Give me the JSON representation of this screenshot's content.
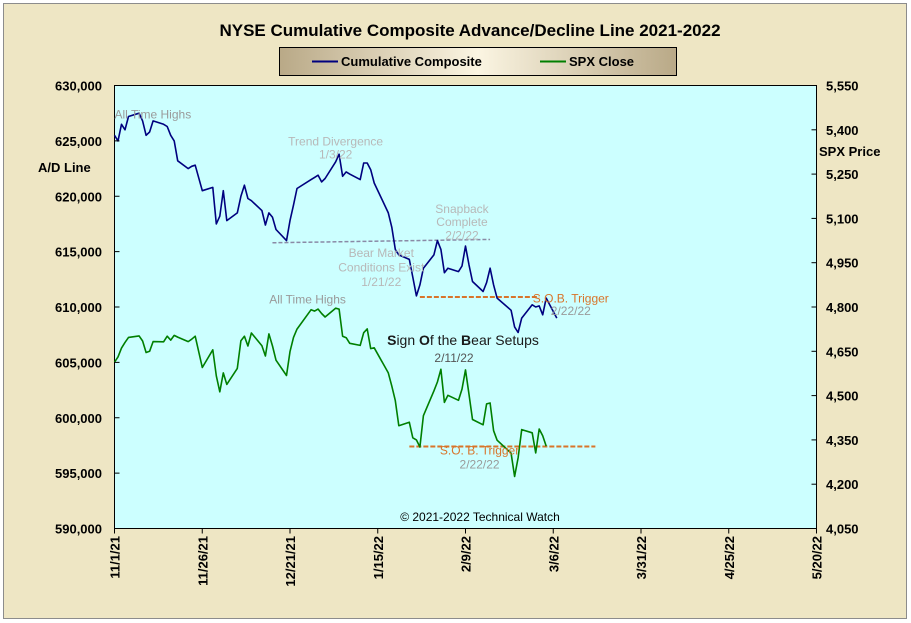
{
  "chart_data": {
    "type": "line",
    "title": "NYSE Cumulative  Composite Advance/Decline Line 2021-2022",
    "ylabel": "A/D Line",
    "y2label": "SPX Price",
    "ylim": [
      590000,
      630000
    ],
    "y2lim": [
      4050,
      5550
    ],
    "yticks": [
      "630,000",
      "625,000",
      "620,000",
      "615,000",
      "610,000",
      "605,000",
      "600,000",
      "595,000",
      "590,000"
    ],
    "y2ticks": [
      "5,550",
      "5,400",
      "5,250",
      "5,100",
      "4,950",
      "4,800",
      "4,650",
      "4,500",
      "4,350",
      "4,200",
      "4,050"
    ],
    "xticks": [
      "11/1/21",
      "11/26/21",
      "12/21/21",
      "1/15/22",
      "2/9/22",
      "3/6/22",
      "3/31/22",
      "4/25/22",
      "5/20/22"
    ],
    "xlim": [
      "2021-11-01",
      "2022-05-20"
    ],
    "legend_placement": "top-center",
    "grid": false,
    "credit": "© 2021-2022  Technical Watch",
    "colors": {
      "composite": "#00007f",
      "spx": "#007f00",
      "plot_bg": "#ccffff",
      "frame_bg": "#eee6c4",
      "trigger": "#d8742a",
      "divergence": "#8a8aa6",
      "annotation_gray": "#9a9a9a"
    },
    "series": [
      {
        "name": "Cumulative Composite",
        "axis": "left",
        "points": [
          [
            "2021-11-01",
            625500
          ],
          [
            "2021-11-02",
            625000
          ],
          [
            "2021-11-03",
            626500
          ],
          [
            "2021-11-04",
            626000
          ],
          [
            "2021-11-05",
            627200
          ],
          [
            "2021-11-08",
            627500
          ],
          [
            "2021-11-09",
            626800
          ],
          [
            "2021-11-10",
            625500
          ],
          [
            "2021-11-11",
            625800
          ],
          [
            "2021-11-12",
            626800
          ],
          [
            "2021-11-15",
            626500
          ],
          [
            "2021-11-16",
            626300
          ],
          [
            "2021-11-17",
            625500
          ],
          [
            "2021-11-18",
            625000
          ],
          [
            "2021-11-19",
            623200
          ],
          [
            "2021-11-22",
            622500
          ],
          [
            "2021-11-23",
            622700
          ],
          [
            "2021-11-24",
            622800
          ],
          [
            "2021-11-26",
            620500
          ],
          [
            "2021-11-29",
            620800
          ],
          [
            "2021-11-30",
            617500
          ],
          [
            "2021-12-01",
            618200
          ],
          [
            "2021-12-02",
            620500
          ],
          [
            "2021-12-03",
            617800
          ],
          [
            "2021-12-06",
            618500
          ],
          [
            "2021-12-07",
            620000
          ],
          [
            "2021-12-08",
            621000
          ],
          [
            "2021-12-09",
            619800
          ],
          [
            "2021-12-10",
            619600
          ],
          [
            "2021-12-13",
            618700
          ],
          [
            "2021-12-14",
            617400
          ],
          [
            "2021-12-15",
            618500
          ],
          [
            "2021-12-16",
            618100
          ],
          [
            "2021-12-17",
            617000
          ],
          [
            "2021-12-20",
            616000
          ],
          [
            "2021-12-21",
            617800
          ],
          [
            "2021-12-22",
            619200
          ],
          [
            "2021-12-23",
            620700
          ],
          [
            "2021-12-27",
            621500
          ],
          [
            "2021-12-28",
            621700
          ],
          [
            "2021-12-29",
            621900
          ],
          [
            "2021-12-30",
            621300
          ],
          [
            "2021-12-31",
            621600
          ],
          [
            "2022-01-03",
            623100
          ],
          [
            "2022-01-04",
            623800
          ],
          [
            "2022-01-05",
            621800
          ],
          [
            "2022-01-06",
            622200
          ],
          [
            "2022-01-07",
            622000
          ],
          [
            "2022-01-10",
            621500
          ],
          [
            "2022-01-11",
            623000
          ],
          [
            "2022-01-12",
            623000
          ],
          [
            "2022-01-13",
            622400
          ],
          [
            "2022-01-14",
            621200
          ],
          [
            "2022-01-18",
            618500
          ],
          [
            "2022-01-19",
            617200
          ],
          [
            "2022-01-20",
            615200
          ],
          [
            "2022-01-21",
            614700
          ],
          [
            "2022-01-24",
            614300
          ],
          [
            "2022-01-25",
            612700
          ],
          [
            "2022-01-26",
            611000
          ],
          [
            "2022-01-27",
            612000
          ],
          [
            "2022-01-28",
            613500
          ],
          [
            "2022-01-31",
            614700
          ],
          [
            "2022-02-01",
            616000
          ],
          [
            "2022-02-02",
            615200
          ],
          [
            "2022-02-03",
            613100
          ],
          [
            "2022-02-04",
            613500
          ],
          [
            "2022-02-07",
            613200
          ],
          [
            "2022-02-08",
            613700
          ],
          [
            "2022-02-09",
            615500
          ],
          [
            "2022-02-10",
            613800
          ],
          [
            "2022-02-11",
            612300
          ],
          [
            "2022-02-14",
            611400
          ],
          [
            "2022-02-15",
            612200
          ],
          [
            "2022-02-16",
            613500
          ],
          [
            "2022-02-17",
            612000
          ],
          [
            "2022-02-18",
            610800
          ],
          [
            "2022-02-22",
            609700
          ],
          [
            "2022-02-23",
            608200
          ],
          [
            "2022-02-24",
            607700
          ],
          [
            "2022-02-25",
            609000
          ],
          [
            "2022-02-28",
            610200
          ],
          [
            "2022-03-01",
            610000
          ],
          [
            "2022-03-02",
            610100
          ],
          [
            "2022-03-03",
            609300
          ],
          [
            "2022-03-04",
            610800
          ],
          [
            "2022-03-07",
            609000
          ]
        ]
      },
      {
        "name": "SPX Close",
        "axis": "right",
        "points": [
          [
            "2021-11-01",
            4613
          ],
          [
            "2021-11-02",
            4631
          ],
          [
            "2021-11-03",
            4661
          ],
          [
            "2021-11-04",
            4680
          ],
          [
            "2021-11-05",
            4697
          ],
          [
            "2021-11-08",
            4702
          ],
          [
            "2021-11-09",
            4685
          ],
          [
            "2021-11-10",
            4646
          ],
          [
            "2021-11-11",
            4650
          ],
          [
            "2021-11-12",
            4683
          ],
          [
            "2021-11-15",
            4682
          ],
          [
            "2021-11-16",
            4701
          ],
          [
            "2021-11-17",
            4688
          ],
          [
            "2021-11-18",
            4704
          ],
          [
            "2021-11-19",
            4698
          ],
          [
            "2021-11-22",
            4683
          ],
          [
            "2021-11-23",
            4691
          ],
          [
            "2021-11-24",
            4701
          ],
          [
            "2021-11-26",
            4595
          ],
          [
            "2021-11-29",
            4655
          ],
          [
            "2021-11-30",
            4567
          ],
          [
            "2021-12-01",
            4513
          ],
          [
            "2021-12-02",
            4577
          ],
          [
            "2021-12-03",
            4538
          ],
          [
            "2021-12-06",
            4592
          ],
          [
            "2021-12-07",
            4686
          ],
          [
            "2021-12-08",
            4701
          ],
          [
            "2021-12-09",
            4668
          ],
          [
            "2021-12-10",
            4712
          ],
          [
            "2021-12-13",
            4669
          ],
          [
            "2021-12-14",
            4634
          ],
          [
            "2021-12-15",
            4709
          ],
          [
            "2021-12-16",
            4668
          ],
          [
            "2021-12-17",
            4620
          ],
          [
            "2021-12-20",
            4568
          ],
          [
            "2021-12-21",
            4649
          ],
          [
            "2021-12-22",
            4697
          ],
          [
            "2021-12-23",
            4725
          ],
          [
            "2021-12-27",
            4791
          ],
          [
            "2021-12-28",
            4786
          ],
          [
            "2021-12-29",
            4793
          ],
          [
            "2021-12-30",
            4778
          ],
          [
            "2021-12-31",
            4766
          ],
          [
            "2022-01-03",
            4796
          ],
          [
            "2022-01-04",
            4793
          ],
          [
            "2022-01-05",
            4701
          ],
          [
            "2022-01-06",
            4696
          ],
          [
            "2022-01-07",
            4677
          ],
          [
            "2022-01-10",
            4670
          ],
          [
            "2022-01-11",
            4713
          ],
          [
            "2022-01-12",
            4726
          ],
          [
            "2022-01-13",
            4659
          ],
          [
            "2022-01-14",
            4662
          ],
          [
            "2022-01-18",
            4577
          ],
          [
            "2022-01-19",
            4532
          ],
          [
            "2022-01-20",
            4483
          ],
          [
            "2022-01-21",
            4398
          ],
          [
            "2022-01-24",
            4410
          ],
          [
            "2022-01-25",
            4357
          ],
          [
            "2022-01-26",
            4350
          ],
          [
            "2022-01-27",
            4326
          ],
          [
            "2022-01-28",
            4432
          ],
          [
            "2022-01-31",
            4516
          ],
          [
            "2022-02-01",
            4546
          ],
          [
            "2022-02-02",
            4589
          ],
          [
            "2022-02-03",
            4477
          ],
          [
            "2022-02-04",
            4501
          ],
          [
            "2022-02-07",
            4484
          ],
          [
            "2022-02-08",
            4522
          ],
          [
            "2022-02-09",
            4587
          ],
          [
            "2022-02-10",
            4504
          ],
          [
            "2022-02-11",
            4419
          ],
          [
            "2022-02-14",
            4401
          ],
          [
            "2022-02-15",
            4472
          ],
          [
            "2022-02-16",
            4475
          ],
          [
            "2022-02-17",
            4381
          ],
          [
            "2022-02-18",
            4349
          ],
          [
            "2022-02-22",
            4305
          ],
          [
            "2022-02-23",
            4226
          ],
          [
            "2022-02-24",
            4289
          ],
          [
            "2022-02-25",
            4385
          ],
          [
            "2022-02-28",
            4374
          ],
          [
            "2022-03-01",
            4306
          ],
          [
            "2022-03-02",
            4387
          ],
          [
            "2022-03-03",
            4364
          ],
          [
            "2022-03-04",
            4329
          ]
        ]
      }
    ],
    "annotations": [
      {
        "text": "All Time Highs",
        "color": "gray",
        "anchor": [
          "2021-11-01",
          627000
        ],
        "axis": "left"
      },
      {
        "text": "Trend  Divergence",
        "color": "silver",
        "anchor": [
          "2022-01-03",
          624600
        ],
        "axis": "left"
      },
      {
        "text": "1/3/22",
        "color": "silver",
        "anchor": [
          "2022-01-03",
          623400
        ],
        "axis": "left"
      },
      {
        "text": "Snapback",
        "color": "silver",
        "anchor": [
          "2022-02-08",
          618500
        ],
        "axis": "left"
      },
      {
        "text": "Complete",
        "color": "silver",
        "anchor": [
          "2022-02-08",
          617300
        ],
        "axis": "left"
      },
      {
        "text": "2/2/22",
        "color": "silver",
        "anchor": [
          "2022-02-08",
          616100
        ],
        "axis": "left"
      },
      {
        "text": "Bear Market",
        "color": "silver",
        "anchor": [
          "2022-01-16",
          614500
        ],
        "axis": "left"
      },
      {
        "text": "Conditions  Exist",
        "color": "silver",
        "anchor": [
          "2022-01-16",
          613200
        ],
        "axis": "left"
      },
      {
        "text": "1/21/22",
        "color": "silver",
        "anchor": [
          "2022-01-16",
          611900
        ],
        "axis": "left"
      },
      {
        "text": "All Time  Highs",
        "color": "gray",
        "anchor": [
          "2021-12-26",
          610300
        ],
        "axis": "left"
      },
      {
        "text": "S.O.B. Trigger",
        "color": "orange",
        "anchor": [
          "2022-03-11",
          610400
        ],
        "axis": "left"
      },
      {
        "text": "2/22/22",
        "color": "gray",
        "anchor": [
          "2022-03-11",
          609300
        ],
        "axis": "left"
      },
      {
        "text": "S.O. B. Trigger",
        "color": "orange",
        "anchor": [
          "2022-02-13",
          596700
        ],
        "axis": "left"
      },
      {
        "text": "2/22/22",
        "color": "gray",
        "anchor": [
          "2022-02-13",
          595400
        ],
        "axis": "left"
      }
    ],
    "setup_label": {
      "parts": [
        "S",
        "ign ",
        "O",
        "f the ",
        "B",
        "ear Setups"
      ],
      "date": "2/11/22",
      "anchor": [
        "2022-02-11",
        607000
      ]
    },
    "reference_lines": [
      {
        "name": "divergence",
        "from": [
          "2021-12-16",
          615800
        ],
        "to": [
          "2022-02-16",
          616100
        ]
      },
      {
        "name": "sob-trigger-composite",
        "from": [
          "2022-01-27",
          610900
        ],
        "to": [
          "2022-03-02",
          610900
        ]
      },
      {
        "name": "sob-trigger-spx",
        "from": [
          "2022-01-24",
          597400
        ],
        "to": [
          "2022-03-18",
          597400
        ]
      }
    ]
  }
}
